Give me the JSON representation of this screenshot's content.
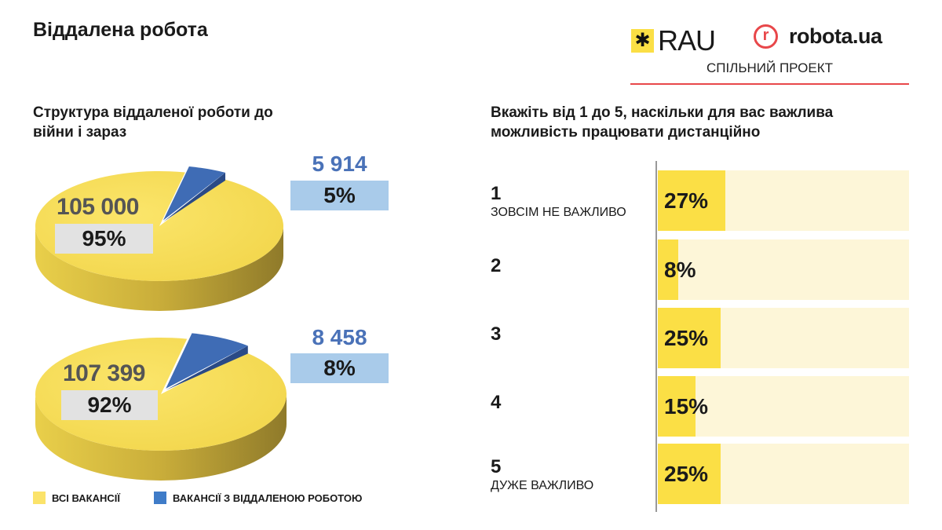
{
  "header": {
    "title": "Віддалена робота",
    "logos": {
      "rau": "RAU",
      "robota": "robota.ua",
      "joint_project": "СПІЛЬНИЙ ПРОЕКТ"
    }
  },
  "colors": {
    "yellow": "#fbdf45",
    "blue": "#3f6cb5",
    "light_blue_box": "#a9cbea",
    "gray_box": "#e2e2e2",
    "track": "#fdf6d8",
    "brand_red": "#e8474a"
  },
  "chart_data": [
    {
      "type": "pie",
      "title": "Структура віддаленої роботи до війни і зараз",
      "legend": [
        "ВСІ ВАКАНСІЇ",
        "ВАКАНСІЇ З ВІДДАЛЕНОЮ РОБОТОЮ"
      ],
      "legend_placement": "bottom",
      "pies": [
        {
          "slices": [
            {
              "name": "ВСІ ВАКАНСІЇ",
              "value": 105000,
              "value_label": "105 000",
              "pct_label": "95%",
              "fraction": 0.95
            },
            {
              "name": "ВАКАНСІЇ З ВІДДАЛЕНОЮ РОБОТОЮ",
              "value": 5914,
              "value_label": "5 914",
              "pct_label": "5%",
              "fraction": 0.05
            }
          ]
        },
        {
          "slices": [
            {
              "name": "ВСІ ВАКАНСІЇ",
              "value": 107399,
              "value_label": "107 399",
              "pct_label": "92%",
              "fraction": 0.92
            },
            {
              "name": "ВАКАНСІЇ З ВІДДАЛЕНОЮ РОБОТОЮ",
              "value": 8458,
              "value_label": "8 458",
              "pct_label": "8%",
              "fraction": 0.08
            }
          ]
        }
      ]
    },
    {
      "type": "bar",
      "orientation": "horizontal",
      "title": "Вкажіть від 1 до 5, наскільки для вас важлива можливість працювати дистанційно",
      "xlim": [
        0,
        100
      ],
      "categories": [
        {
          "label": "1",
          "sublabel": "ЗОВСІМ НЕ ВАЖЛИВО"
        },
        {
          "label": "2",
          "sublabel": ""
        },
        {
          "label": "3",
          "sublabel": ""
        },
        {
          "label": "4",
          "sublabel": ""
        },
        {
          "label": "5",
          "sublabel": "ДУЖЕ ВАЖЛИВО"
        }
      ],
      "values": [
        27,
        8,
        25,
        15,
        25
      ],
      "value_labels": [
        "27%",
        "8%",
        "25%",
        "15%",
        "25%"
      ]
    }
  ]
}
